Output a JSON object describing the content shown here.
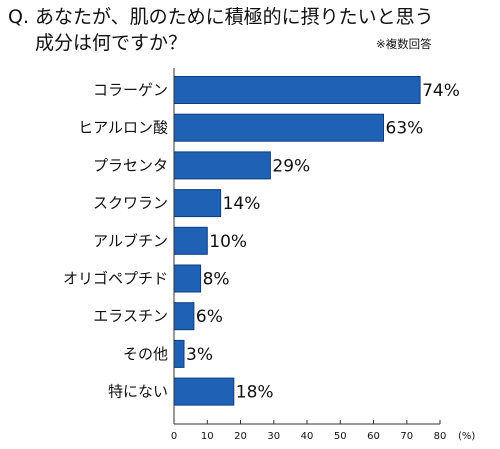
{
  "header": {
    "question_line1": "Q. あなたが、肌のために積極的に摂りたいと思う",
    "question_line2": "成分は何ですか？",
    "note": "※複数回答"
  },
  "colors": {
    "bar_fill": "#1f62b5",
    "bar_stroke": "#0d3f80",
    "axis": "#333333"
  },
  "chart_data": {
    "type": "bar",
    "orientation": "horizontal",
    "categories": [
      "コラーゲン",
      "ヒアルロン酸",
      "プラセンタ",
      "スクワラン",
      "アルブチン",
      "オリゴペプチド",
      "エラスチン",
      "その他",
      "特にない"
    ],
    "values": [
      74,
      63,
      29,
      14,
      10,
      8,
      6,
      3,
      18
    ],
    "value_labels": [
      "74%",
      "63%",
      "29%",
      "14%",
      "10%",
      "8%",
      "6%",
      "3%",
      "18%"
    ],
    "title": "",
    "xlabel": "",
    "ylabel": "",
    "xlim": [
      0,
      80
    ],
    "x_ticks": [
      0,
      10,
      20,
      30,
      40,
      50,
      60,
      70,
      80
    ],
    "x_tick_labels": [
      "0",
      "10",
      "20",
      "30",
      "40",
      "50",
      "60",
      "70",
      "80"
    ],
    "unit_label": "(%)",
    "grid": false,
    "legend": "none"
  }
}
